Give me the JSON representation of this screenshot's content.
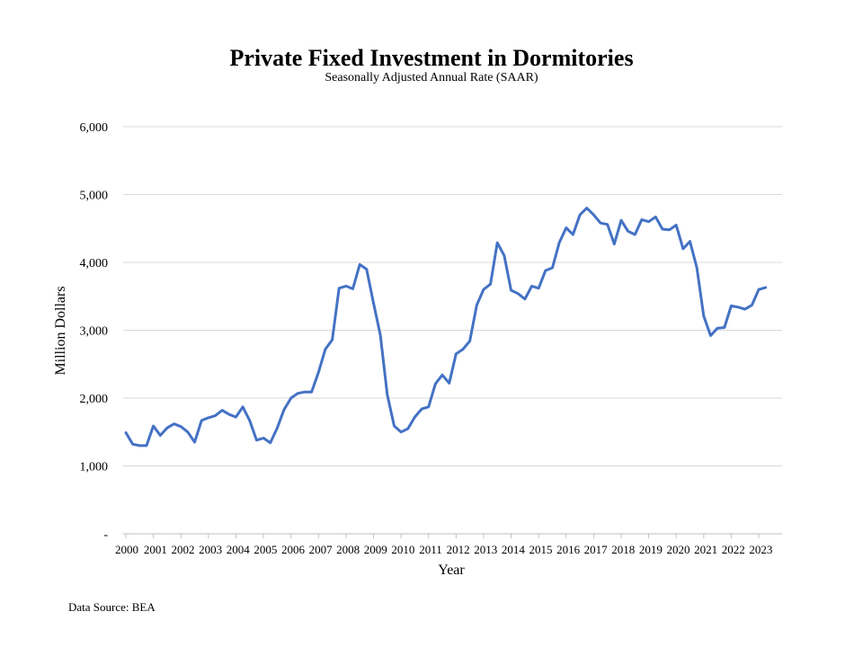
{
  "chart_data": {
    "type": "line",
    "title": "Private Fixed Investment in Dormitories",
    "subtitle": "Seasonally Adjusted Annual Rate (SAAR)",
    "xlabel": "Year",
    "ylabel": "Million Dollars",
    "source": "Data Source: BEA",
    "ylim": [
      0,
      6000
    ],
    "yticks": [
      0,
      1000,
      2000,
      3000,
      4000,
      5000,
      6000
    ],
    "ytick_labels": [
      "-",
      "1,000",
      "2,000",
      "3,000",
      "4,000",
      "5,000",
      "6,000"
    ],
    "x_tick_labels": [
      "2000",
      "2001",
      "2002",
      "2003",
      "2004",
      "2005",
      "2006",
      "2007",
      "2008",
      "2009",
      "2010",
      "2011",
      "2012",
      "2013",
      "2014",
      "2015",
      "2016",
      "2017",
      "2018",
      "2019",
      "2020",
      "2021",
      "2022",
      "2023"
    ],
    "grid": true,
    "line_color": "#4472C4",
    "x_start_label": "2000 Q1",
    "frequency": "quarterly",
    "series": [
      {
        "values": [
          1490,
          1320,
          1300,
          1300,
          1590,
          1450,
          1560,
          1620,
          1580,
          1500,
          1350,
          1670,
          1710,
          1740,
          1820,
          1760,
          1720,
          1870,
          1670,
          1380,
          1410,
          1340,
          1560,
          1830,
          2000,
          2070,
          2090,
          2090,
          2380,
          2720,
          2860,
          3620,
          3650,
          3610,
          3970,
          3900,
          3400,
          2930,
          2050,
          1590,
          1500,
          1550,
          1720,
          1840,
          1870,
          2210,
          2340,
          2220,
          2650,
          2720,
          2840,
          3370,
          3600,
          3680,
          4290,
          4100,
          3590,
          3540,
          3460,
          3650,
          3620,
          3880,
          3920,
          4290,
          4510,
          4410,
          4700,
          4800,
          4700,
          4580,
          4560,
          4270,
          4620,
          4460,
          4410,
          4630,
          4600,
          4670,
          4490,
          4480,
          4550,
          4200,
          4310,
          3920,
          3210,
          2920,
          3030,
          3040,
          3360,
          3340,
          3310,
          3370,
          3600,
          3630
        ]
      }
    ]
  }
}
